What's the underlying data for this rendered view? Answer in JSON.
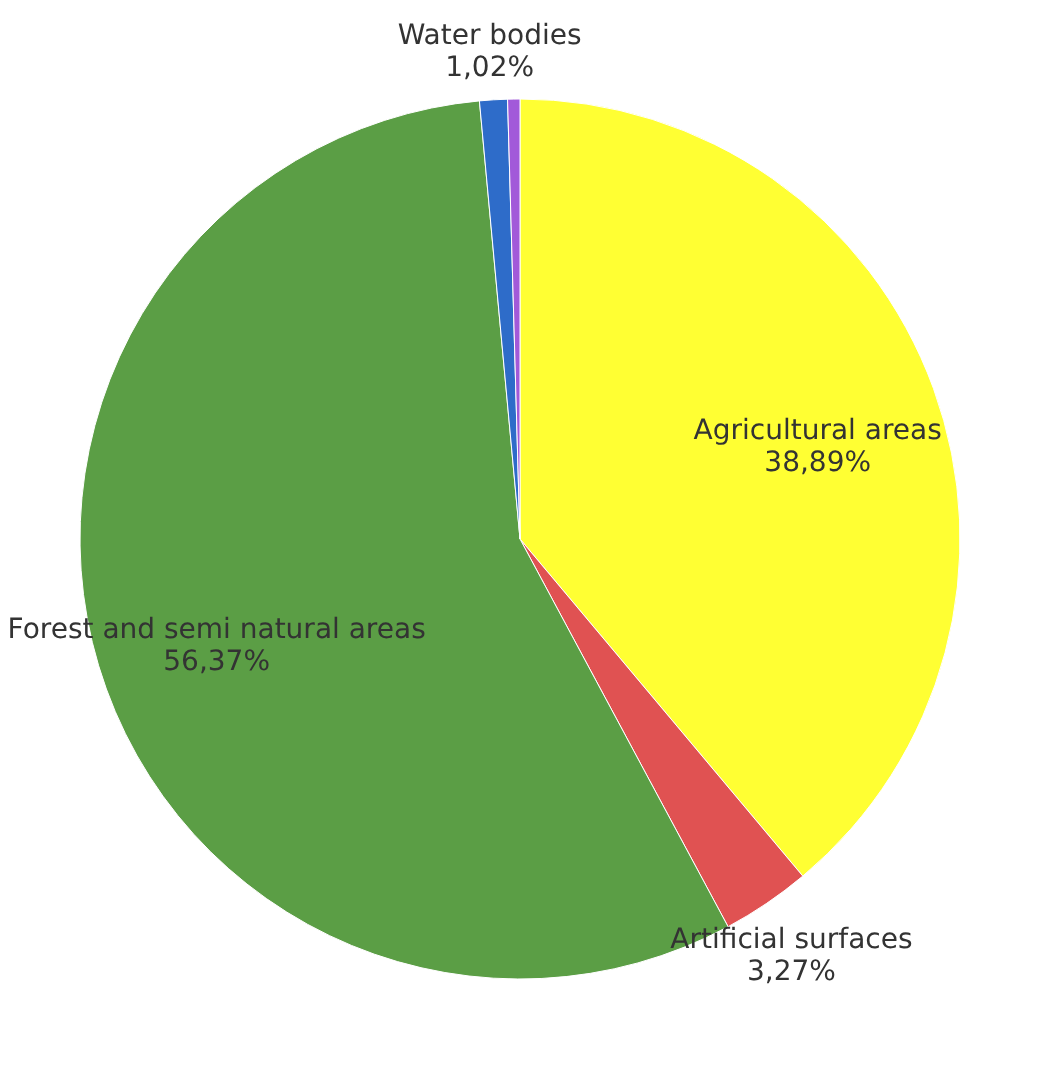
{
  "chart_data": {
    "type": "pie",
    "categories": [
      "Agricultural areas",
      "Artificial surfaces",
      "Forest and semi natural areas",
      "Water bodies",
      null
    ],
    "values": [
      38.89,
      3.27,
      56.37,
      1.02,
      0.45
    ],
    "value_labels": [
      "38,89%",
      "3,27%",
      "56,37%",
      "1,02%",
      null
    ],
    "colors": [
      "#ffff33",
      "#e05252",
      "#5b9e45",
      "#2e6cc9",
      "#a259d9"
    ],
    "legend": false
  }
}
